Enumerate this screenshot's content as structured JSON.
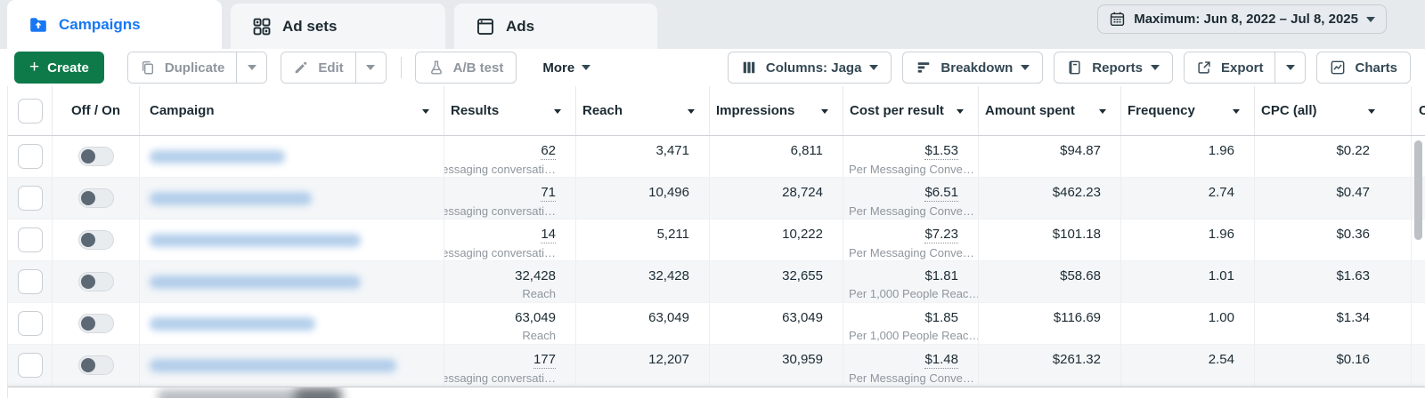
{
  "colors": {
    "accent_blue": "#1877f2",
    "create_green": "#0e7a4a",
    "text_dark": "#1c2b33",
    "text_gray": "#8f969e",
    "row_alt_bg": "#f4f6f8",
    "blur_blue": "#a8c7e8"
  },
  "tabs": [
    {
      "label": "Campaigns",
      "active": true
    },
    {
      "label": "Ad sets",
      "active": false
    },
    {
      "label": "Ads",
      "active": false
    }
  ],
  "date_range": {
    "label": "Maximum: Jun 8, 2022 – Jul 8, 2025"
  },
  "toolbar": {
    "create": "Create",
    "duplicate": "Duplicate",
    "edit": "Edit",
    "ab_test": "A/B test",
    "more": "More",
    "columns": "Columns: Jaga",
    "breakdown": "Breakdown",
    "reports": "Reports",
    "export": "Export",
    "charts": "Charts"
  },
  "table": {
    "columns": [
      "Off / On",
      "Campaign",
      "Results",
      "Reach",
      "Impressions",
      "Cost per result",
      "Amount spent",
      "Frequency",
      "CPC (all)"
    ],
    "partial_next_column": "C",
    "rows": [
      {
        "results": "62",
        "results_sub": "lessaging conversati…",
        "results_dotted": true,
        "reach": "3,471",
        "impressions": "6,811",
        "cost_per_result": "$1.53",
        "cost_sub": "Per Messaging Conve…",
        "cost_dotted": true,
        "amount_spent": "$94.87",
        "frequency": "1.96",
        "cpc": "$0.22",
        "toggle": "off",
        "name_blur_width": 152
      },
      {
        "results": "71",
        "results_sub": "lessaging conversati…",
        "results_dotted": true,
        "reach": "10,496",
        "impressions": "28,724",
        "cost_per_result": "$6.51",
        "cost_sub": "Per Messaging Conve…",
        "cost_dotted": true,
        "amount_spent": "$462.23",
        "frequency": "2.74",
        "cpc": "$0.47",
        "toggle": "off",
        "name_blur_width": 182
      },
      {
        "results": "14",
        "results_sub": "lessaging conversati…",
        "results_dotted": true,
        "reach": "5,211",
        "impressions": "10,222",
        "cost_per_result": "$7.23",
        "cost_sub": "Per Messaging Conve…",
        "cost_dotted": true,
        "amount_spent": "$101.18",
        "frequency": "1.96",
        "cpc": "$0.36",
        "toggle": "off",
        "name_blur_width": 237
      },
      {
        "results": "32,428",
        "results_sub": "Reach",
        "results_dotted": false,
        "reach": "32,428",
        "impressions": "32,655",
        "cost_per_result": "$1.81",
        "cost_sub": "Per 1,000 People Reac…",
        "cost_dotted": false,
        "amount_spent": "$58.68",
        "frequency": "1.01",
        "cpc": "$1.63",
        "toggle": "off",
        "name_blur_width": 237
      },
      {
        "results": "63,049",
        "results_sub": "Reach",
        "results_dotted": false,
        "reach": "63,049",
        "impressions": "63,049",
        "cost_per_result": "$1.85",
        "cost_sub": "Per 1,000 People Reac…",
        "cost_dotted": false,
        "amount_spent": "$116.69",
        "frequency": "1.00",
        "cpc": "$1.34",
        "toggle": "off",
        "name_blur_width": 186
      },
      {
        "results": "177",
        "results_sub": "lessaging conversati…",
        "results_dotted": true,
        "reach": "12,207",
        "impressions": "30,959",
        "cost_per_result": "$1.48",
        "cost_sub": "Per Messaging Conve…",
        "cost_dotted": true,
        "amount_spent": "$261.32",
        "frequency": "2.54",
        "cpc": "$0.16",
        "toggle": "off",
        "name_blur_width": 277
      }
    ]
  }
}
